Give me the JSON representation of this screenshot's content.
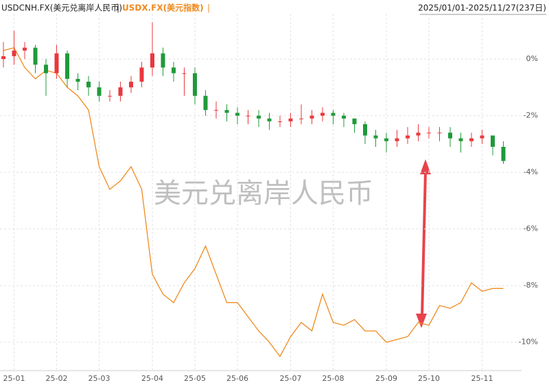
{
  "chart_data": {
    "type": "candlestick",
    "title": "USDCNH.FX(美元兑离岸人民币)",
    "separator": "|",
    "subtitle": "USDX.FX(美元指数)",
    "date_range": "2025/01/01-2025/11/27(237日)",
    "watermark": "美元兑离岸人民币",
    "categories": [
      null,
      "25-01",
      null,
      null,
      null,
      "25-02",
      null,
      null,
      null,
      "25-03",
      null,
      null,
      null,
      null,
      "25-04",
      null,
      null,
      null,
      "25-05",
      null,
      null,
      null,
      "25-06",
      null,
      null,
      null,
      null,
      "25-07",
      null,
      null,
      null,
      "25-08",
      null,
      null,
      null,
      null,
      "25-09",
      null,
      null,
      null,
      "25-10",
      null,
      null,
      null,
      null,
      "25-11",
      null,
      null
    ],
    "ylim": [
      -11,
      1.6
    ],
    "yticks": [
      {
        "value": 0,
        "label": "0%"
      },
      {
        "value": -2,
        "label": "-2%"
      },
      {
        "value": -4,
        "label": "-4%"
      },
      {
        "value": -6,
        "label": "-6%"
      },
      {
        "value": -8,
        "label": "-8%"
      },
      {
        "value": -10,
        "label": "-10%"
      }
    ],
    "grid": true,
    "series": [
      {
        "name": "USDCNH.FX(美元兑离岸人民币)",
        "type": "candlestick",
        "up_color": "#e8383d",
        "down_color": "#1f9a3a",
        "open": [
          0.0,
          0.1,
          0.3,
          0.4,
          -0.2,
          -0.5,
          0.2,
          -0.7,
          -0.8,
          -1.0,
          -1.3,
          -1.3,
          -1.0,
          -0.8,
          -0.3,
          0.2,
          -0.3,
          -0.5,
          -0.5,
          -1.3,
          -1.8,
          -1.8,
          -1.9,
          -2.0,
          -2.0,
          -2.1,
          -2.2,
          -2.2,
          -2.1,
          -2.1,
          -2.0,
          -1.9,
          -2.0,
          -2.1,
          -2.3,
          -2.7,
          -2.8,
          -2.9,
          -2.8,
          -2.7,
          -2.6,
          -2.6,
          -2.6,
          -2.8,
          -2.9,
          -2.8,
          -2.7,
          -3.1
        ],
        "high": [
          0.6,
          1.0,
          0.6,
          0.5,
          0.0,
          0.5,
          0.3,
          -0.5,
          -0.6,
          -0.8,
          -1.1,
          -0.8,
          -0.6,
          -0.1,
          1.3,
          0.4,
          -0.1,
          -0.3,
          -0.3,
          -1.1,
          -1.5,
          -1.6,
          -1.7,
          -1.8,
          -1.8,
          -1.9,
          -2.0,
          -1.9,
          -1.6,
          -1.8,
          -1.7,
          -1.8,
          -1.9,
          -2.1,
          -2.2,
          -2.5,
          -2.6,
          -2.5,
          -2.4,
          -2.3,
          -2.4,
          -2.4,
          -2.4,
          -2.6,
          -2.6,
          -2.5,
          -2.7,
          -2.9
        ],
        "low": [
          -0.3,
          -0.2,
          0.0,
          -0.5,
          -1.3,
          -0.7,
          -1.0,
          -1.1,
          -1.3,
          -1.5,
          -1.5,
          -1.5,
          -1.2,
          -1.0,
          -0.6,
          -0.6,
          -0.8,
          -1.3,
          -1.6,
          -2.0,
          -2.1,
          -2.2,
          -2.3,
          -2.3,
          -2.4,
          -2.5,
          -2.4,
          -2.4,
          -2.3,
          -2.3,
          -2.2,
          -2.3,
          -2.4,
          -2.6,
          -3.0,
          -3.1,
          -3.3,
          -3.1,
          -3.0,
          -2.9,
          -2.8,
          -2.9,
          -3.1,
          -3.3,
          -3.1,
          -3.0,
          -3.4,
          -3.7
        ],
        "close": [
          0.1,
          0.3,
          0.4,
          -0.2,
          -0.5,
          0.2,
          -0.7,
          -0.8,
          -1.0,
          -1.3,
          -1.3,
          -1.0,
          -0.8,
          -0.3,
          0.2,
          -0.3,
          -0.5,
          -0.5,
          -1.3,
          -1.8,
          -1.8,
          -1.9,
          -2.0,
          -2.0,
          -2.1,
          -2.2,
          -2.2,
          -2.1,
          -2.1,
          -2.0,
          -1.9,
          -2.0,
          -2.1,
          -2.3,
          -2.7,
          -2.8,
          -2.9,
          -2.8,
          -2.7,
          -2.6,
          -2.6,
          -2.6,
          -2.8,
          -2.9,
          -2.8,
          -2.7,
          -3.1,
          -3.6
        ]
      },
      {
        "name": "USDX.FX(美元指数)",
        "type": "line",
        "color": "#ee8a1f",
        "values": [
          0.3,
          0.4,
          -0.3,
          -0.7,
          -0.4,
          -0.5,
          -1.0,
          -1.3,
          -1.8,
          -3.8,
          -4.6,
          -4.3,
          -3.8,
          -4.6,
          -7.6,
          -8.3,
          -8.6,
          -7.9,
          -7.4,
          -6.6,
          -7.6,
          -8.6,
          -8.6,
          -9.1,
          -9.6,
          -10.0,
          -10.5,
          -9.8,
          -9.3,
          -9.6,
          -8.3,
          -9.3,
          -9.4,
          -9.2,
          -9.6,
          -9.6,
          -10.0,
          -9.9,
          -9.8,
          -9.3,
          -9.4,
          -8.7,
          -8.8,
          -8.6,
          -7.9,
          -8.2,
          -8.1,
          -8.1
        ]
      }
    ]
  }
}
